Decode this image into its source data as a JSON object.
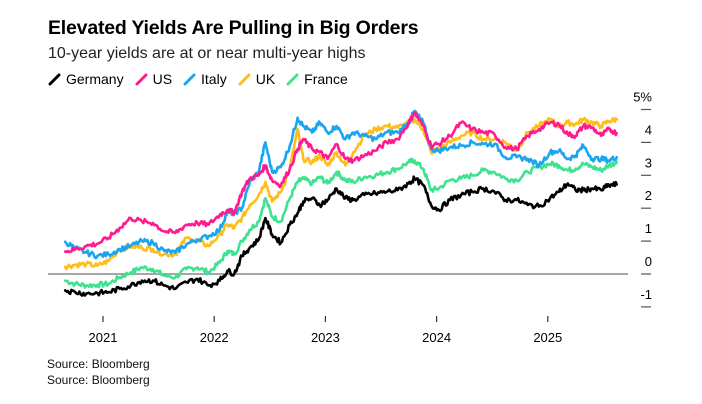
{
  "header": {
    "title": "Elevated Yields Are Pulling in Big Orders",
    "subtitle": "10-year yields are at or near multi-year highs"
  },
  "footer": {
    "source_lines": [
      "Source: Bloomberg",
      "Source: Bloomberg"
    ]
  },
  "chart_data": {
    "type": "line",
    "title": "Elevated Yields Are Pulling in Big Orders",
    "subtitle": "10-year yields are at or near multi-year highs",
    "xlabel": "",
    "ylabel": "",
    "x_unit": "year",
    "xlim": [
      2020.66,
      2025.62
    ],
    "ylim": [
      -1,
      5
    ],
    "x_ticks": [
      2021,
      2022,
      2023,
      2024,
      2025
    ],
    "x_tick_labels": [
      "2021",
      "2022",
      "2023",
      "2024",
      "2025"
    ],
    "y_ticks": [
      -1,
      0,
      1,
      2,
      3,
      4,
      5
    ],
    "y_tick_labels": [
      "-1",
      "0",
      "1",
      "2",
      "3",
      "4",
      "5%"
    ],
    "zero_line": true,
    "grid": false,
    "y_axis_side": "right",
    "legend_position": "top-left",
    "series": [
      {
        "name": "Germany",
        "color": "#000000",
        "x": [
          2020.66,
          2020.75,
          2020.85,
          2020.95,
          2021.05,
          2021.15,
          2021.25,
          2021.35,
          2021.45,
          2021.55,
          2021.65,
          2021.75,
          2021.85,
          2021.95,
          2022.05,
          2022.12,
          2022.18,
          2022.25,
          2022.32,
          2022.4,
          2022.46,
          2022.52,
          2022.6,
          2022.68,
          2022.75,
          2022.8,
          2022.88,
          2022.95,
          2023.02,
          2023.1,
          2023.18,
          2023.25,
          2023.35,
          2023.45,
          2023.55,
          2023.65,
          2023.75,
          2023.8,
          2023.88,
          2023.95,
          2024.02,
          2024.12,
          2024.22,
          2024.32,
          2024.42,
          2024.52,
          2024.62,
          2024.72,
          2024.82,
          2024.92,
          2025.02,
          2025.1,
          2025.18,
          2025.25,
          2025.32,
          2025.4,
          2025.48,
          2025.55,
          2025.62
        ],
        "values": [
          -0.5,
          -0.55,
          -0.6,
          -0.58,
          -0.55,
          -0.45,
          -0.35,
          -0.2,
          -0.2,
          -0.35,
          -0.45,
          -0.25,
          -0.15,
          -0.35,
          -0.2,
          0.1,
          0.0,
          0.55,
          0.8,
          1.05,
          1.7,
          1.2,
          0.95,
          1.5,
          1.85,
          2.2,
          2.3,
          2.1,
          2.25,
          2.6,
          2.3,
          2.25,
          2.4,
          2.45,
          2.5,
          2.55,
          2.75,
          2.9,
          2.7,
          2.1,
          1.95,
          2.25,
          2.4,
          2.5,
          2.6,
          2.5,
          2.25,
          2.25,
          2.1,
          2.05,
          2.3,
          2.5,
          2.75,
          2.55,
          2.55,
          2.6,
          2.55,
          2.7,
          2.72
        ]
      },
      {
        "name": "US",
        "color": "#ff1b8d",
        "x": [
          2020.66,
          2020.75,
          2020.85,
          2020.95,
          2021.05,
          2021.15,
          2021.25,
          2021.35,
          2021.45,
          2021.55,
          2021.65,
          2021.75,
          2021.85,
          2021.95,
          2022.05,
          2022.12,
          2022.18,
          2022.25,
          2022.32,
          2022.4,
          2022.46,
          2022.52,
          2022.6,
          2022.68,
          2022.75,
          2022.8,
          2022.88,
          2022.95,
          2023.02,
          2023.1,
          2023.18,
          2023.25,
          2023.35,
          2023.45,
          2023.55,
          2023.65,
          2023.75,
          2023.8,
          2023.88,
          2023.95,
          2024.02,
          2024.12,
          2024.22,
          2024.32,
          2024.42,
          2024.52,
          2024.62,
          2024.72,
          2024.82,
          2024.92,
          2025.02,
          2025.1,
          2025.18,
          2025.25,
          2025.32,
          2025.4,
          2025.48,
          2025.55,
          2025.62
        ],
        "values": [
          0.68,
          0.75,
          0.85,
          0.92,
          1.1,
          1.4,
          1.7,
          1.6,
          1.55,
          1.3,
          1.25,
          1.5,
          1.55,
          1.5,
          1.8,
          1.95,
          1.85,
          2.5,
          2.9,
          3.0,
          3.3,
          2.85,
          2.7,
          3.2,
          3.8,
          4.1,
          3.8,
          3.7,
          3.5,
          3.95,
          3.5,
          3.45,
          3.6,
          3.75,
          4.0,
          4.1,
          4.6,
          4.9,
          4.5,
          3.9,
          3.95,
          4.2,
          4.6,
          4.4,
          4.3,
          4.25,
          3.85,
          3.8,
          4.2,
          4.4,
          4.6,
          4.55,
          4.25,
          4.2,
          4.5,
          4.45,
          4.2,
          4.4,
          4.28
        ]
      },
      {
        "name": "Italy",
        "color": "#1ba5f0",
        "x": [
          2020.66,
          2020.75,
          2020.85,
          2020.95,
          2021.05,
          2021.15,
          2021.25,
          2021.35,
          2021.45,
          2021.55,
          2021.65,
          2021.75,
          2021.85,
          2021.95,
          2022.05,
          2022.12,
          2022.18,
          2022.25,
          2022.32,
          2022.4,
          2022.46,
          2022.52,
          2022.6,
          2022.68,
          2022.75,
          2022.8,
          2022.88,
          2022.95,
          2023.02,
          2023.1,
          2023.18,
          2023.25,
          2023.35,
          2023.45,
          2023.55,
          2023.65,
          2023.75,
          2023.8,
          2023.88,
          2023.95,
          2024.02,
          2024.12,
          2024.22,
          2024.32,
          2024.42,
          2024.52,
          2024.62,
          2024.72,
          2024.82,
          2024.92,
          2025.02,
          2025.1,
          2025.18,
          2025.25,
          2025.32,
          2025.4,
          2025.48,
          2025.55,
          2025.62
        ],
        "values": [
          0.98,
          0.78,
          0.65,
          0.55,
          0.6,
          0.75,
          0.85,
          1.0,
          0.95,
          0.7,
          0.65,
          0.9,
          1.05,
          1.15,
          1.35,
          1.9,
          1.85,
          2.0,
          2.8,
          3.1,
          4.0,
          3.1,
          3.25,
          3.9,
          4.75,
          4.5,
          4.3,
          4.6,
          4.3,
          4.5,
          4.1,
          4.3,
          4.2,
          4.1,
          4.3,
          4.3,
          4.6,
          4.95,
          4.6,
          3.8,
          3.75,
          3.85,
          3.9,
          4.0,
          3.95,
          3.95,
          3.55,
          3.55,
          3.5,
          3.3,
          3.7,
          3.75,
          3.5,
          3.6,
          3.9,
          3.5,
          3.5,
          3.45,
          3.55
        ]
      },
      {
        "name": "UK",
        "color": "#ffbd1b",
        "x": [
          2020.66,
          2020.75,
          2020.85,
          2020.95,
          2021.05,
          2021.15,
          2021.25,
          2021.35,
          2021.45,
          2021.55,
          2021.65,
          2021.75,
          2021.85,
          2021.95,
          2022.05,
          2022.12,
          2022.18,
          2022.25,
          2022.32,
          2022.4,
          2022.46,
          2022.52,
          2022.6,
          2022.68,
          2022.75,
          2022.8,
          2022.88,
          2022.95,
          2023.02,
          2023.1,
          2023.18,
          2023.25,
          2023.35,
          2023.45,
          2023.55,
          2023.65,
          2023.75,
          2023.8,
          2023.88,
          2023.95,
          2024.02,
          2024.12,
          2024.22,
          2024.32,
          2024.42,
          2024.52,
          2024.62,
          2024.72,
          2024.82,
          2024.92,
          2025.02,
          2025.1,
          2025.18,
          2025.25,
          2025.32,
          2025.4,
          2025.48,
          2025.55,
          2025.62
        ],
        "values": [
          0.22,
          0.28,
          0.3,
          0.25,
          0.4,
          0.75,
          0.85,
          0.8,
          0.75,
          0.6,
          0.6,
          1.1,
          1.0,
          0.85,
          1.2,
          1.5,
          1.4,
          1.7,
          2.1,
          2.4,
          2.8,
          2.2,
          2.5,
          3.2,
          4.4,
          3.5,
          3.4,
          3.6,
          3.3,
          3.7,
          3.3,
          3.7,
          4.2,
          4.4,
          4.5,
          4.45,
          4.6,
          4.7,
          4.4,
          3.7,
          3.8,
          4.0,
          4.2,
          4.3,
          4.1,
          4.1,
          4.0,
          3.75,
          4.3,
          4.5,
          4.7,
          4.5,
          4.6,
          4.55,
          4.7,
          4.6,
          4.5,
          4.65,
          4.7
        ]
      },
      {
        "name": "France",
        "color": "#3ee28f",
        "x": [
          2020.66,
          2020.75,
          2020.85,
          2020.95,
          2021.05,
          2021.15,
          2021.25,
          2021.35,
          2021.45,
          2021.55,
          2021.65,
          2021.75,
          2021.85,
          2021.95,
          2022.05,
          2022.12,
          2022.18,
          2022.25,
          2022.32,
          2022.4,
          2022.46,
          2022.52,
          2022.6,
          2022.68,
          2022.75,
          2022.8,
          2022.88,
          2022.95,
          2023.02,
          2023.1,
          2023.18,
          2023.25,
          2023.35,
          2023.45,
          2023.55,
          2023.65,
          2023.75,
          2023.8,
          2023.88,
          2023.95,
          2024.02,
          2024.12,
          2024.22,
          2024.32,
          2024.42,
          2024.52,
          2024.62,
          2024.72,
          2024.82,
          2024.92,
          2025.02,
          2025.1,
          2025.18,
          2025.25,
          2025.32,
          2025.4,
          2025.48,
          2025.55,
          2025.62
        ],
        "values": [
          -0.2,
          -0.3,
          -0.35,
          -0.33,
          -0.3,
          -0.1,
          0.05,
          0.2,
          0.15,
          -0.05,
          -0.1,
          0.15,
          0.2,
          0.05,
          0.35,
          0.7,
          0.6,
          1.0,
          1.35,
          1.6,
          2.3,
          1.75,
          1.6,
          2.3,
          2.8,
          2.9,
          2.75,
          2.95,
          2.75,
          3.1,
          2.85,
          2.8,
          2.95,
          3.0,
          3.1,
          3.2,
          3.4,
          3.45,
          3.2,
          2.55,
          2.6,
          2.85,
          2.9,
          3.0,
          3.15,
          3.1,
          2.9,
          2.85,
          3.1,
          3.25,
          3.35,
          3.3,
          3.15,
          3.2,
          3.35,
          3.25,
          3.15,
          3.3,
          3.4
        ]
      }
    ]
  }
}
